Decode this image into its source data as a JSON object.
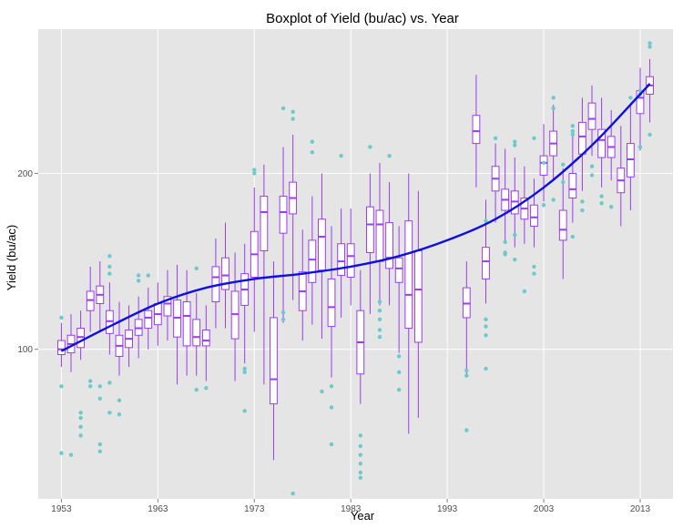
{
  "chart_data": {
    "type": "boxplot",
    "title": "Boxplot of Yield (bu/ac) vs. Year",
    "xlabel": "Year",
    "ylabel": "Yield (bu/ac)",
    "xlim": [
      1950.6,
      2016.4
    ],
    "ylim": [
      15,
      282
    ],
    "x_ticks": [
      1953,
      1963,
      1973,
      1983,
      1993,
      2003,
      2013
    ],
    "y_ticks": [
      100,
      200
    ],
    "grid": true,
    "colors": {
      "panel": "#e5e5e5",
      "grid": "#ffffff",
      "box": "#9b3cf0",
      "outlier": "#6cc9cc",
      "trend": "#1010dd"
    },
    "trend": {
      "x": [
        1953,
        1958,
        1963,
        1968,
        1973,
        1978,
        1983,
        1988,
        1993,
        1998,
        2003,
        2008,
        2013,
        2014
      ],
      "y": [
        99,
        113,
        126,
        135,
        140,
        143,
        147,
        153,
        162,
        174,
        192,
        216,
        245,
        251
      ]
    },
    "boxes": [
      {
        "year": 1953,
        "q": [
          90,
          97,
          100,
          105,
          115
        ],
        "out": [
          79,
          41,
          118
        ]
      },
      {
        "year": 1954,
        "q": [
          87,
          98,
          103,
          108,
          120
        ],
        "out": [
          40
        ]
      },
      {
        "year": 1955,
        "q": [
          94,
          101,
          107,
          112,
          122
        ],
        "out": [
          64,
          61,
          56,
          51
        ]
      },
      {
        "year": 1956,
        "q": [
          110,
          122,
          128,
          133,
          147
        ],
        "out": [
          82,
          79
        ]
      },
      {
        "year": 1957,
        "q": [
          110,
          126,
          131,
          136,
          150
        ],
        "out": [
          79,
          72,
          46,
          42
        ]
      },
      {
        "year": 1958,
        "q": [
          97,
          109,
          116,
          122,
          138
        ],
        "out": [
          81,
          64,
          153,
          147,
          143
        ]
      },
      {
        "year": 1959,
        "q": [
          85,
          96,
          102,
          108,
          127
        ],
        "out": [
          71,
          63
        ]
      },
      {
        "year": 1960,
        "q": [
          90,
          101,
          106,
          111,
          125
        ],
        "out": []
      },
      {
        "year": 1961,
        "q": [
          95,
          108,
          112,
          117,
          130
        ],
        "out": [
          142,
          139
        ]
      },
      {
        "year": 1962,
        "q": [
          100,
          112,
          118,
          122,
          135
        ],
        "out": [
          142
        ]
      },
      {
        "year": 1963,
        "q": [
          102,
          114,
          120,
          126,
          138
        ],
        "out": []
      },
      {
        "year": 1964,
        "q": [
          105,
          119,
          126,
          130,
          145
        ],
        "out": []
      },
      {
        "year": 1965,
        "q": [
          80,
          107,
          118,
          128,
          148
        ],
        "out": []
      },
      {
        "year": 1966,
        "q": [
          85,
          102,
          119,
          127,
          145
        ],
        "out": []
      },
      {
        "year": 1967,
        "q": [
          85,
          102,
          107,
          117,
          132
        ],
        "out": [
          77,
          146
        ]
      },
      {
        "year": 1968,
        "q": [
          82,
          102,
          105,
          111,
          125
        ],
        "out": [
          78
        ]
      },
      {
        "year": 1969,
        "q": [
          112,
          127,
          141,
          147,
          163
        ],
        "out": []
      },
      {
        "year": 1970,
        "q": [
          112,
          134,
          142,
          152,
          172
        ],
        "out": []
      },
      {
        "year": 1971,
        "q": [
          82,
          106,
          120,
          133,
          155
        ],
        "out": []
      },
      {
        "year": 1972,
        "q": [
          92,
          125,
          134,
          143,
          160
        ],
        "out": [
          65,
          89,
          87
        ]
      },
      {
        "year": 1973,
        "q": [
          110,
          141,
          154,
          167,
          192
        ],
        "out": [
          202,
          200
        ]
      },
      {
        "year": 1974,
        "q": [
          80,
          156,
          178,
          187,
          205
        ],
        "out": []
      },
      {
        "year": 1975,
        "q": [
          37,
          69,
          83,
          118,
          150
        ],
        "out": []
      },
      {
        "year": 1976,
        "q": [
          115,
          166,
          178,
          187,
          215
        ],
        "out": [
          237,
          121,
          117
        ]
      },
      {
        "year": 1977,
        "q": [
          128,
          177,
          186,
          195,
          222
        ],
        "out": [
          235,
          231,
          18
        ]
      },
      {
        "year": 1978,
        "q": [
          105,
          122,
          133,
          144,
          168
        ],
        "out": []
      },
      {
        "year": 1979,
        "q": [
          114,
          138,
          151,
          162,
          187
        ],
        "out": [
          218,
          212
        ]
      },
      {
        "year": 1980,
        "q": [
          106,
          145,
          164,
          174,
          200
        ],
        "out": [
          76
        ]
      },
      {
        "year": 1981,
        "q": [
          84,
          113,
          124,
          140,
          170
        ],
        "out": [
          46,
          67,
          79
        ]
      },
      {
        "year": 1982,
        "q": [
          118,
          142,
          150,
          160,
          180
        ],
        "out": [
          210
        ]
      },
      {
        "year": 1983,
        "q": [
          125,
          141,
          153,
          160,
          180
        ],
        "out": []
      },
      {
        "year": 1984,
        "q": [
          69,
          86,
          104,
          122,
          145
        ],
        "out": [
          51,
          45,
          40,
          35,
          30,
          27
        ]
      },
      {
        "year": 1985,
        "q": [
          120,
          155,
          171,
          181,
          200
        ],
        "out": [
          215
        ]
      },
      {
        "year": 1986,
        "q": [
          125,
          150,
          171,
          179,
          206
        ],
        "out": [
          127,
          122,
          117,
          111,
          107
        ]
      },
      {
        "year": 1987,
        "q": [
          125,
          146,
          152,
          172,
          195
        ],
        "out": [
          210
        ]
      },
      {
        "year": 1988,
        "q": [
          98,
          138,
          146,
          152,
          170
        ],
        "out": [
          77,
          96,
          87
        ]
      },
      {
        "year": 1989,
        "q": [
          52,
          112,
          131,
          173,
          200
        ],
        "out": []
      },
      {
        "year": 1990,
        "q": [
          61,
          104,
          134,
          156,
          190
        ],
        "out": []
      },
      {
        "year": 1995,
        "q": [
          85,
          118,
          126,
          135,
          150
        ],
        "out": [
          88,
          85,
          54
        ]
      },
      {
        "year": 1996,
        "q": [
          192,
          217,
          224,
          233,
          256
        ],
        "out": []
      },
      {
        "year": 1997,
        "q": [
          126,
          140,
          150,
          158,
          185
        ],
        "out": [
          173,
          117,
          113,
          108,
          89
        ]
      },
      {
        "year": 1998,
        "q": [
          172,
          190,
          197,
          204,
          217
        ],
        "out": [
          220
        ]
      },
      {
        "year": 1999,
        "q": [
          162,
          179,
          185,
          191,
          214
        ],
        "out": [
          161,
          154,
          155
        ]
      },
      {
        "year": 2000,
        "q": [
          158,
          177,
          184,
          190,
          209
        ],
        "out": [
          151,
          165,
          216,
          218
        ]
      },
      {
        "year": 2001,
        "q": [
          160,
          174,
          180,
          186,
          204
        ],
        "out": [
          133
        ]
      },
      {
        "year": 2002,
        "q": [
          158,
          170,
          175,
          182,
          197
        ],
        "out": [
          147,
          143,
          220
        ]
      },
      {
        "year": 2003,
        "q": [
          184,
          199,
          206,
          210,
          228
        ],
        "out": [
          182,
          206
        ]
      },
      {
        "year": 2004,
        "q": [
          196,
          210,
          217,
          224,
          239
        ],
        "out": [
          185,
          243,
          237
        ]
      },
      {
        "year": 2005,
        "q": [
          140,
          162,
          168,
          179,
          203
        ],
        "out": [
          195,
          205
        ]
      },
      {
        "year": 2006,
        "q": [
          172,
          186,
          191,
          200,
          225
        ],
        "out": [
          164,
          224,
          227,
          222
        ]
      },
      {
        "year": 2007,
        "q": [
          190,
          211,
          221,
          229,
          243
        ],
        "out": [
          184,
          179
        ]
      },
      {
        "year": 2008,
        "q": [
          210,
          225,
          231,
          240,
          250
        ],
        "out": [
          204,
          199
        ]
      },
      {
        "year": 2009,
        "q": [
          192,
          209,
          219,
          225,
          243
        ],
        "out": [
          187,
          183
        ]
      },
      {
        "year": 2010,
        "q": [
          196,
          209,
          215,
          221,
          236
        ],
        "out": [
          181
        ]
      },
      {
        "year": 2011,
        "q": [
          170,
          189,
          196,
          203,
          227
        ],
        "out": []
      },
      {
        "year": 2012,
        "q": [
          179,
          198,
          208,
          217,
          240
        ],
        "out": [
          243
        ]
      },
      {
        "year": 2013,
        "q": [
          213,
          234,
          243,
          247,
          260
        ],
        "out": [
          215,
          245,
          247
        ]
      },
      {
        "year": 2014,
        "q": [
          229,
          245,
          250,
          255,
          265
        ],
        "out": [
          222,
          272,
          274
        ]
      }
    ]
  }
}
